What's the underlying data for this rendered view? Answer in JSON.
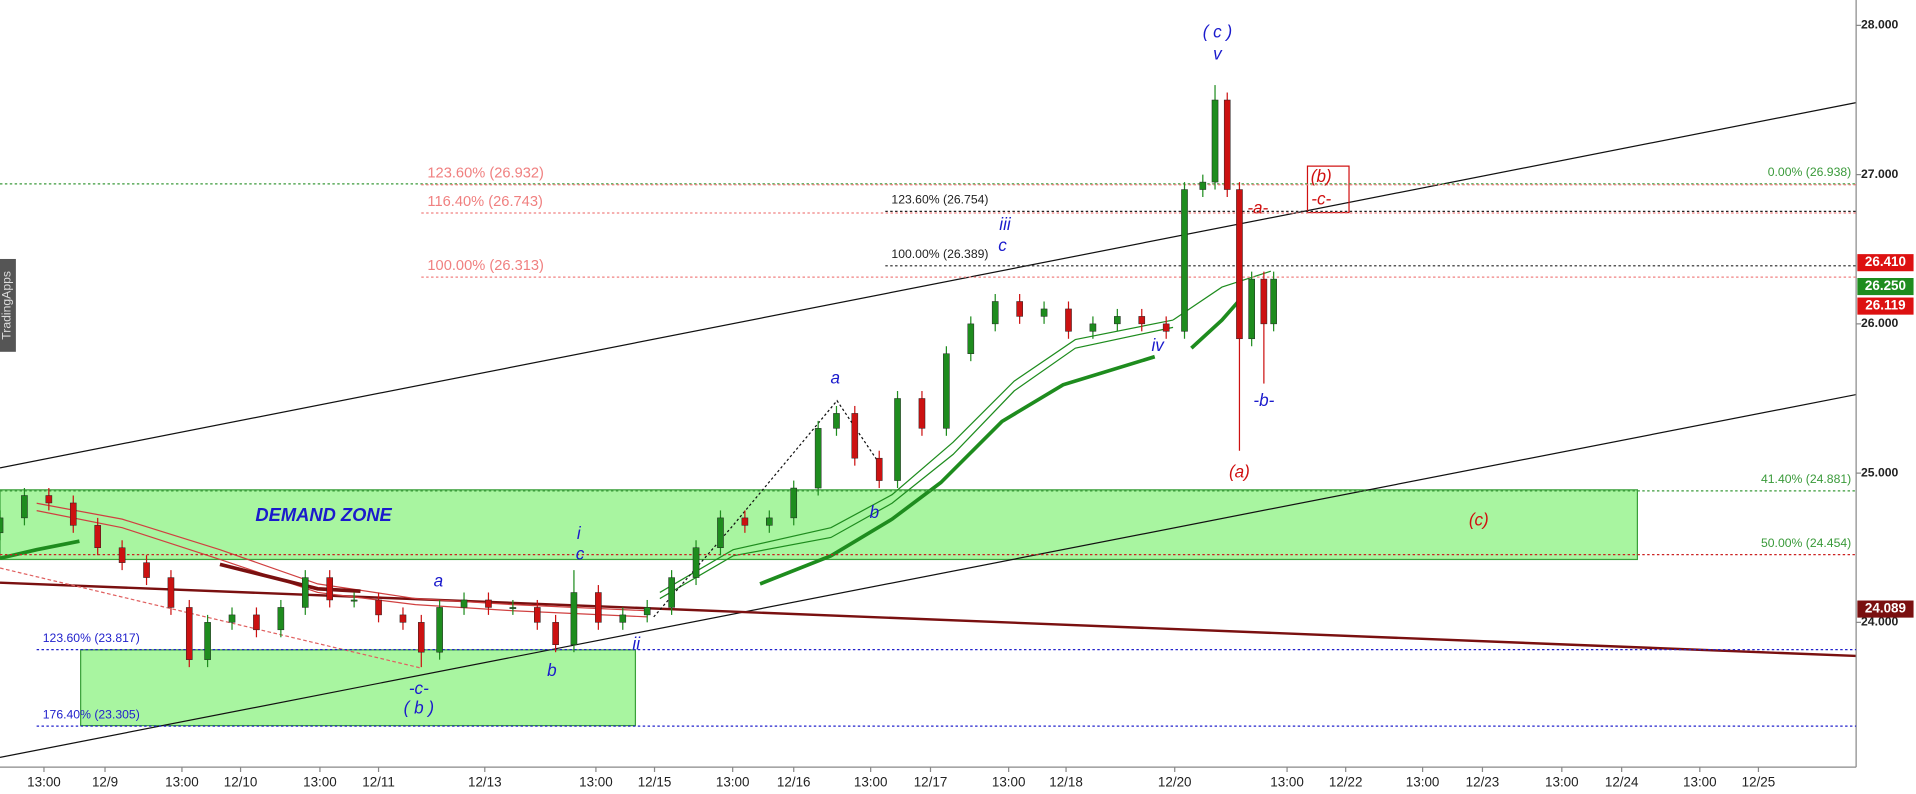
{
  "chart_data": {
    "type": "candlestick",
    "watermark": "TradingApps",
    "xlim": [
      0,
      152
    ],
    "ylim": [
      23.03,
      28.17
    ],
    "xticks": [
      {
        "value": 3.6,
        "label": "13:00"
      },
      {
        "value": 8.6,
        "label": "12/9"
      },
      {
        "value": 14.9,
        "label": "13:00"
      },
      {
        "value": 19.7,
        "label": "12/10"
      },
      {
        "value": 26.2,
        "label": "13:00"
      },
      {
        "value": 31.0,
        "label": "12/11"
      },
      {
        "value": 39.7,
        "label": "12/13"
      },
      {
        "value": 48.8,
        "label": "13:00"
      },
      {
        "value": 53.6,
        "label": "12/15"
      },
      {
        "value": 60.0,
        "label": "13:00"
      },
      {
        "value": 65.0,
        "label": "12/16"
      },
      {
        "value": 71.3,
        "label": "13:00"
      },
      {
        "value": 76.2,
        "label": "12/17"
      },
      {
        "value": 82.6,
        "label": "13:00"
      },
      {
        "value": 87.3,
        "label": "12/18"
      },
      {
        "value": 96.2,
        "label": "12/20"
      },
      {
        "value": 105.4,
        "label": "13:00"
      },
      {
        "value": 110.2,
        "label": "12/22"
      },
      {
        "value": 116.5,
        "label": "13:00"
      },
      {
        "value": 121.4,
        "label": "12/23"
      },
      {
        "value": 127.9,
        "label": "13:00"
      },
      {
        "value": 132.8,
        "label": "12/24"
      },
      {
        "value": 139.2,
        "label": "13:00"
      },
      {
        "value": 144.0,
        "label": "12/25"
      }
    ],
    "yticks": [
      {
        "value": 28,
        "label": "28.000"
      },
      {
        "value": 27,
        "label": "27.000"
      },
      {
        "value": 26,
        "label": "26.000"
      },
      {
        "value": 25,
        "label": "25.000"
      },
      {
        "value": 24,
        "label": "24.000"
      }
    ],
    "x": [
      0,
      2,
      4,
      6,
      8,
      10,
      12,
      14,
      15.5,
      17,
      19,
      21,
      23,
      25,
      27,
      29,
      31,
      33,
      34.5,
      36,
      38,
      40,
      42,
      44,
      45.5,
      47,
      49,
      51,
      53,
      55,
      57,
      59,
      61,
      63,
      65,
      67,
      68.5,
      70,
      72,
      73.5,
      75.5,
      77.5,
      79.5,
      81.5,
      83.5,
      85.5,
      87.5,
      89.5,
      91.5,
      93.5,
      95.5,
      97,
      98.5,
      99.5,
      100.5,
      101.5,
      102.5,
      103.5,
      104.3
    ],
    "open": [
      24.6,
      24.7,
      24.85,
      24.8,
      24.65,
      24.5,
      24.4,
      24.3,
      24.1,
      23.75,
      24.0,
      24.05,
      23.95,
      24.1,
      24.3,
      24.15,
      24.15,
      24.05,
      24.0,
      23.8,
      24.1,
      24.15,
      24.1,
      24.1,
      24.0,
      23.85,
      24.2,
      24.0,
      24.05,
      24.1,
      24.3,
      24.5,
      24.7,
      24.65,
      24.7,
      24.9,
      25.3,
      25.4,
      25.1,
      24.95,
      25.5,
      25.3,
      25.8,
      26.0,
      26.15,
      26.05,
      26.1,
      25.95,
      26.0,
      26.05,
      26.0,
      25.95,
      26.9,
      26.95,
      27.5,
      26.9,
      25.9,
      26.3,
      26.0
    ],
    "high": [
      24.75,
      24.9,
      24.9,
      24.85,
      24.7,
      24.55,
      24.45,
      24.35,
      24.15,
      24.05,
      24.1,
      24.1,
      24.15,
      24.35,
      24.35,
      24.2,
      24.2,
      24.1,
      24.05,
      24.15,
      24.2,
      24.2,
      24.15,
      24.15,
      24.05,
      24.35,
      24.25,
      24.1,
      24.15,
      24.35,
      24.55,
      24.75,
      24.75,
      24.75,
      24.95,
      25.35,
      25.45,
      25.45,
      25.15,
      25.55,
      25.55,
      25.85,
      26.05,
      26.2,
      26.2,
      26.15,
      26.15,
      26.05,
      26.1,
      26.1,
      26.05,
      26.95,
      27.0,
      27.6,
      27.55,
      26.95,
      26.35,
      26.35,
      26.35
    ],
    "low": [
      24.55,
      24.65,
      24.75,
      24.6,
      24.45,
      24.35,
      24.25,
      24.05,
      23.7,
      23.7,
      23.95,
      23.9,
      23.9,
      24.05,
      24.1,
      24.1,
      24.0,
      23.95,
      23.7,
      23.75,
      24.05,
      24.05,
      24.05,
      23.95,
      23.8,
      23.8,
      23.95,
      23.95,
      24.0,
      24.05,
      24.25,
      24.45,
      24.6,
      24.6,
      24.65,
      24.85,
      25.25,
      25.05,
      24.9,
      24.9,
      25.25,
      25.25,
      25.75,
      25.95,
      26.0,
      26.0,
      25.9,
      25.9,
      25.95,
      25.95,
      25.9,
      25.9,
      26.85,
      26.9,
      26.85,
      25.15,
      25.85,
      25.6,
      25.95
    ],
    "close": [
      24.7,
      24.85,
      24.8,
      24.65,
      24.5,
      24.4,
      24.3,
      24.1,
      23.75,
      24.0,
      24.05,
      23.95,
      24.1,
      24.3,
      24.15,
      24.15,
      24.05,
      24.0,
      23.8,
      24.1,
      24.15,
      24.1,
      24.1,
      24.0,
      23.85,
      24.2,
      24.0,
      24.05,
      24.1,
      24.3,
      24.5,
      24.7,
      24.65,
      24.7,
      24.9,
      25.3,
      25.4,
      25.1,
      24.95,
      25.5,
      25.3,
      25.8,
      26.0,
      26.15,
      26.05,
      26.1,
      25.95,
      26.0,
      26.05,
      26.0,
      25.95,
      26.9,
      26.95,
      27.5,
      26.9,
      25.9,
      26.3,
      26.0,
      26.3
    ],
    "up_color": "#1e8c1e",
    "down_color": "#cc1111",
    "levels": [
      {
        "label": "0.00% (26.938)",
        "value": 26.938,
        "color": "#3a9a3a",
        "x": 0
      },
      {
        "label": "41.40% (24.881)",
        "value": 24.881,
        "color": "#3a9a3a",
        "x": 0
      },
      {
        "label": "50.00% (24.454)",
        "value": 24.454,
        "color": "#3a9a3a",
        "line_color": "#cc2222",
        "x": 0
      },
      {
        "label": "123.60% (26.932)",
        "value": 26.932,
        "color": "#f08080",
        "x": 34.5
      },
      {
        "label": "116.40% (26.743)",
        "value": 26.743,
        "color": "#f08080",
        "x": 34.5
      },
      {
        "label": "100.00% (26.313)",
        "value": 26.313,
        "color": "#f08080",
        "x": 34.5
      },
      {
        "label": "123.60% (26.754)",
        "value": 26.754,
        "color": "#222222",
        "x": 72.5
      },
      {
        "label": "100.00% (26.389)",
        "value": 26.389,
        "color": "#222222",
        "x": 72.5
      },
      {
        "label": "123.60% (23.817)",
        "value": 23.817,
        "color": "#2222cc",
        "x": 3
      },
      {
        "label": "176.40% (23.305)",
        "value": 23.305,
        "color": "#2222cc",
        "x": 3
      }
    ],
    "price_labels": [
      {
        "value": 26.41,
        "label": "26.410",
        "color": "#dd1111"
      },
      {
        "value": 26.25,
        "label": "26.250",
        "color": "#1e8c1e"
      },
      {
        "value": 26.119,
        "label": "26.119",
        "color": "#dd1111"
      },
      {
        "value": 24.089,
        "label": "24.089",
        "color": "#7a1010"
      }
    ],
    "annotations": [
      {
        "text": "( c )",
        "x": 99.7,
        "y": 27.95,
        "color": "#1a1acc"
      },
      {
        "text": "v",
        "x": 99.7,
        "y": 27.8,
        "color": "#1a1acc"
      },
      {
        "text": "iii",
        "x": 82.3,
        "y": 26.66,
        "color": "#1a1acc"
      },
      {
        "text": "c",
        "x": 82.1,
        "y": 26.52,
        "color": "#1a1acc"
      },
      {
        "text": "a",
        "x": 68.4,
        "y": 25.63,
        "color": "#1a1acc"
      },
      {
        "text": "b",
        "x": 71.6,
        "y": 24.73,
        "color": "#1a1acc"
      },
      {
        "text": "iv",
        "x": 94.8,
        "y": 25.85,
        "color": "#1a1acc"
      },
      {
        "text": "(a)",
        "x": 101.5,
        "y": 25.0,
        "color": "#d01010"
      },
      {
        "text": "-b-",
        "x": 103.5,
        "y": 25.48,
        "color": "#1a1acc"
      },
      {
        "text": "-a-",
        "x": 103.0,
        "y": 26.77,
        "color": "#d01010"
      },
      {
        "text": "(b)",
        "x": 108.2,
        "y": 26.98,
        "color": "#d01010"
      },
      {
        "text": "-c-",
        "x": 108.2,
        "y": 26.83,
        "color": "#d01010"
      },
      {
        "text": "i",
        "x": 47.4,
        "y": 24.59,
        "color": "#1a1acc"
      },
      {
        "text": "c",
        "x": 47.5,
        "y": 24.45,
        "color": "#1a1acc"
      },
      {
        "text": "ii",
        "x": 52.1,
        "y": 23.85,
        "color": "#1a1acc"
      },
      {
        "text": "a",
        "x": 35.9,
        "y": 24.27,
        "color": "#1a1acc"
      },
      {
        "text": "b",
        "x": 45.2,
        "y": 23.67,
        "color": "#1a1acc"
      },
      {
        "text": "-c-",
        "x": 34.3,
        "y": 23.55,
        "color": "#1a1acc"
      },
      {
        "text": "( b )",
        "x": 34.3,
        "y": 23.42,
        "color": "#1a1acc"
      },
      {
        "text": "(c)",
        "x": 121.1,
        "y": 24.68,
        "color": "#d01010"
      },
      {
        "text": "DEMAND ZONE",
        "x": 26.5,
        "y": 24.71,
        "color": "#1a1acc"
      }
    ]
  }
}
